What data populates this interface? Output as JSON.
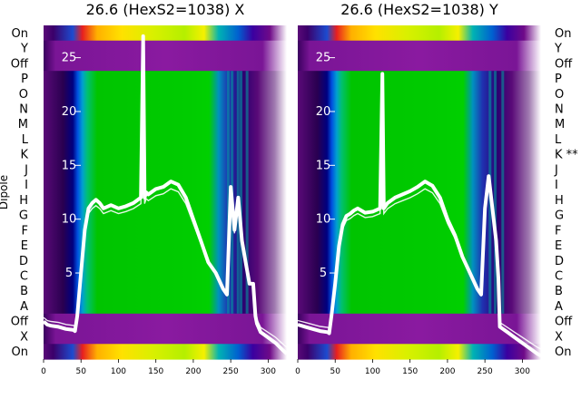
{
  "chart_data": {
    "type": "heatmap",
    "ylabel": "Dipole",
    "row_labels": [
      "On",
      "Y",
      "Off",
      "P",
      "O",
      "N",
      "M",
      "L",
      "K",
      "J",
      "I",
      "H",
      "G",
      "F",
      "E",
      "D",
      "C",
      "B",
      "A",
      "Off",
      "X",
      "On"
    ],
    "xlim": [
      0,
      325
    ],
    "xticks": [
      0,
      50,
      100,
      150,
      200,
      250,
      300
    ],
    "overlay_yticks": [
      5,
      10,
      15,
      20,
      25
    ],
    "overlay_ylim": [
      -3,
      28
    ],
    "colormap": "nipy_spectral",
    "panels": [
      {
        "title": "26.6 (HexS2=1038) X",
        "right_labels": [
          "On",
          "Y",
          "Off",
          "P",
          "O",
          "N",
          "M",
          "L",
          "K",
          "J",
          "I",
          "H",
          "G",
          "F",
          "E",
          "D",
          "C",
          "B",
          "A",
          "Off",
          "X",
          "On"
        ],
        "overlay_curve": {
          "x": [
            0,
            5,
            10,
            20,
            30,
            40,
            42,
            45,
            50,
            55,
            60,
            65,
            70,
            75,
            80,
            90,
            100,
            110,
            120,
            130,
            133,
            135,
            137,
            140,
            150,
            160,
            170,
            180,
            190,
            200,
            210,
            220,
            230,
            240,
            245,
            250,
            255,
            260,
            265,
            270,
            275,
            280,
            283,
            285,
            290,
            300,
            310,
            320,
            325
          ],
          "y": [
            0.5,
            0.2,
            0.1,
            0.0,
            -0.2,
            -0.3,
            -0.4,
            1.0,
            5.0,
            9.0,
            11.0,
            11.5,
            11.8,
            11.5,
            11.0,
            11.3,
            11.0,
            11.2,
            11.5,
            12.0,
            27.0,
            12.0,
            12.5,
            12.3,
            12.8,
            13.0,
            13.5,
            13.2,
            12.0,
            10.0,
            8.0,
            6.0,
            5.0,
            3.5,
            3.0,
            13.0,
            9.0,
            12.0,
            8.0,
            6.0,
            4.0,
            4.0,
            1.0,
            0.3,
            -0.5,
            -1.0,
            -1.5,
            -2.2,
            -2.5
          ]
        }
      },
      {
        "title": "26.6 (HexS2=1038) Y",
        "right_labels": [
          "On",
          "Y",
          "Off",
          "P",
          "O",
          "N",
          "M",
          "L",
          "K **",
          "J",
          "I",
          "H",
          "G",
          "F",
          "E",
          "D",
          "C",
          "B",
          "A",
          "Off",
          "X",
          "On"
        ],
        "overlay_curve": {
          "x": [
            0,
            5,
            10,
            20,
            30,
            40,
            42,
            45,
            50,
            55,
            60,
            65,
            70,
            75,
            80,
            90,
            100,
            110,
            113,
            115,
            117,
            120,
            130,
            140,
            150,
            160,
            170,
            180,
            190,
            200,
            210,
            220,
            230,
            240,
            245,
            250,
            255,
            260,
            265,
            268,
            270,
            280,
            290,
            300,
            310,
            320,
            325
          ],
          "y": [
            0.2,
            0.1,
            0.0,
            -0.2,
            -0.4,
            -0.5,
            -0.6,
            1.0,
            4.0,
            7.5,
            9.5,
            10.3,
            10.5,
            10.8,
            11.0,
            10.6,
            10.7,
            11.0,
            23.5,
            11.0,
            11.2,
            11.5,
            12.0,
            12.3,
            12.6,
            13.0,
            13.5,
            13.1,
            12.0,
            10.0,
            8.5,
            6.5,
            5.0,
            3.5,
            3.0,
            11.0,
            14.0,
            11.0,
            8.0,
            4.5,
            0.0,
            -0.5,
            -1.0,
            -1.5,
            -2.0,
            -2.5,
            -2.7
          ]
        }
      }
    ]
  }
}
